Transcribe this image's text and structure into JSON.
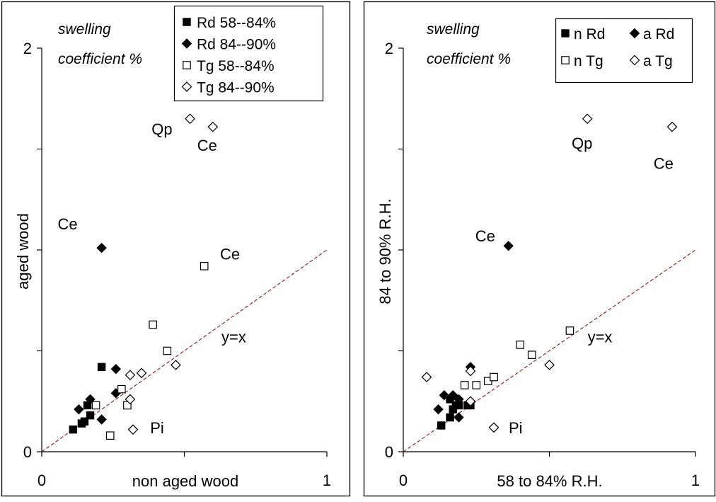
{
  "chart_data": [
    {
      "type": "scatter",
      "title": "swelling coefficient %",
      "xlabel": "non aged wood",
      "ylabel": "aged wood",
      "xlim": [
        0,
        1
      ],
      "ylim": [
        0,
        2
      ],
      "xticks": [
        "0",
        "1"
      ],
      "yticks": [
        "0",
        "2"
      ],
      "reference_line": {
        "label": "y=x",
        "x": [
          0,
          1
        ],
        "y": [
          0,
          1
        ]
      },
      "legend_position": "top-right",
      "series": [
        {
          "name": "Rd 58--84%",
          "marker": "square-filled",
          "points": [
            [
              0.11,
              0.11
            ],
            [
              0.14,
              0.14
            ],
            [
              0.15,
              0.15
            ],
            [
              0.17,
              0.18
            ],
            [
              0.16,
              0.23
            ],
            [
              0.21,
              0.42
            ]
          ]
        },
        {
          "name": "Rd 84--90%",
          "marker": "diamond-filled",
          "points": [
            [
              0.13,
              0.21
            ],
            [
              0.17,
              0.26
            ],
            [
              0.21,
              0.16
            ],
            [
              0.21,
              1.01
            ],
            [
              0.26,
              0.29
            ],
            [
              0.26,
              0.41
            ]
          ]
        },
        {
          "name": "Tg 58--84%",
          "marker": "square-open",
          "points": [
            [
              0.19,
              0.23
            ],
            [
              0.24,
              0.08
            ],
            [
              0.28,
              0.31
            ],
            [
              0.3,
              0.23
            ],
            [
              0.39,
              0.63
            ],
            [
              0.44,
              0.5
            ],
            [
              0.57,
              0.92
            ]
          ]
        },
        {
          "name": "Tg 84--90%",
          "marker": "diamond-open",
          "points": [
            [
              0.31,
              0.26
            ],
            [
              0.32,
              0.11
            ],
            [
              0.31,
              0.38
            ],
            [
              0.35,
              0.39
            ],
            [
              0.47,
              0.43
            ],
            [
              0.52,
              1.65
            ],
            [
              0.6,
              1.61
            ]
          ]
        }
      ],
      "annotations": [
        {
          "text": "Qp",
          "x": 0.43,
          "y": 1.6
        },
        {
          "text": "Ce",
          "x": 0.58,
          "y": 1.52
        },
        {
          "text": "Ce",
          "x": 0.16,
          "y": 1.13
        },
        {
          "text": "Ce",
          "x": 0.66,
          "y": 0.98
        },
        {
          "text": "y=x",
          "x": 0.66,
          "y": 0.57
        },
        {
          "text": "Pi",
          "x": 0.4,
          "y": 0.12
        }
      ]
    },
    {
      "type": "scatter",
      "title": "swelling coefficient %",
      "xlabel": "58 to 84% R.H.",
      "ylabel": "84 to 90% R.H.",
      "xlim": [
        0,
        1
      ],
      "ylim": [
        0,
        2
      ],
      "xticks": [
        "0",
        "1"
      ],
      "yticks": [
        "0",
        "2"
      ],
      "reference_line": {
        "label": "y=x",
        "x": [
          0,
          1
        ],
        "y": [
          0,
          1
        ]
      },
      "legend_position": "top-right",
      "series": [
        {
          "name": "n Rd",
          "marker": "square-filled",
          "points": [
            [
              0.13,
              0.13
            ],
            [
              0.16,
              0.17
            ],
            [
              0.17,
              0.21
            ],
            [
              0.16,
              0.26
            ],
            [
              0.18,
              0.23
            ],
            [
              0.19,
              0.23
            ],
            [
              0.22,
              0.23
            ],
            [
              0.23,
              0.23
            ]
          ]
        },
        {
          "name": "a Rd",
          "marker": "diamond-filled",
          "points": [
            [
              0.12,
              0.21
            ],
            [
              0.14,
              0.28
            ],
            [
              0.17,
              0.28
            ],
            [
              0.19,
              0.17
            ],
            [
              0.19,
              0.26
            ],
            [
              0.23,
              0.42
            ],
            [
              0.36,
              1.02
            ]
          ]
        },
        {
          "name": "n Tg",
          "marker": "square-open",
          "points": [
            [
              0.21,
              0.33
            ],
            [
              0.25,
              0.33
            ],
            [
              0.29,
              0.35
            ],
            [
              0.31,
              0.37
            ],
            [
              0.4,
              0.53
            ],
            [
              0.44,
              0.48
            ],
            [
              0.57,
              0.6
            ]
          ]
        },
        {
          "name": "a Tg",
          "marker": "diamond-open",
          "points": [
            [
              0.08,
              0.37
            ],
            [
              0.23,
              0.4
            ],
            [
              0.23,
              0.25
            ],
            [
              0.31,
              0.12
            ],
            [
              0.5,
              0.43
            ],
            [
              0.63,
              1.65
            ],
            [
              0.92,
              1.61
            ]
          ]
        }
      ],
      "annotations": [
        {
          "text": "Qp",
          "x": 0.62,
          "y": 1.53
        },
        {
          "text": "Ce",
          "x": 0.9,
          "y": 1.43
        },
        {
          "text": "Ce",
          "x": 0.29,
          "y": 1.07
        },
        {
          "text": "y=x",
          "x": 0.66,
          "y": 0.57
        },
        {
          "text": "Pi",
          "x": 0.38,
          "y": 0.12
        }
      ]
    }
  ]
}
